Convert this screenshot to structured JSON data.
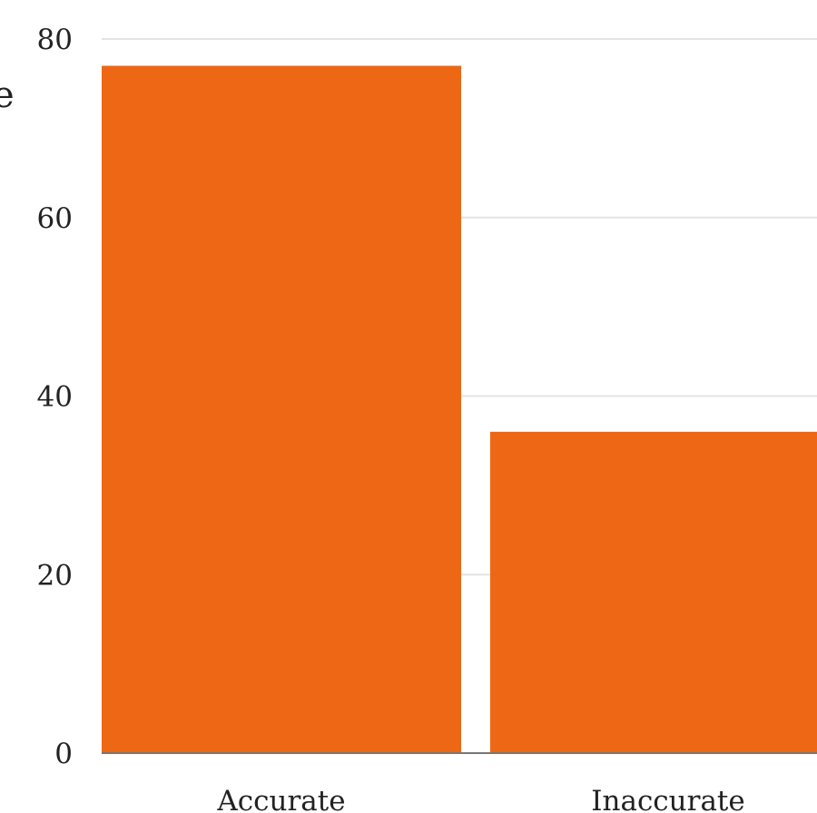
{
  "chart_data": {
    "type": "bar",
    "categories": [
      "Accurate",
      "Inaccurate"
    ],
    "values": [
      77,
      36
    ],
    "ylim": [
      0,
      80
    ],
    "yticks": [
      0,
      20,
      40,
      60,
      80
    ],
    "grid": true,
    "title": "",
    "xlabel": "",
    "ylabel": "",
    "partial_text": "e"
  },
  "colors": {
    "bar": "#EE6715",
    "grid": "#E3E3E3",
    "axis": "#777777",
    "text": "#222222"
  }
}
